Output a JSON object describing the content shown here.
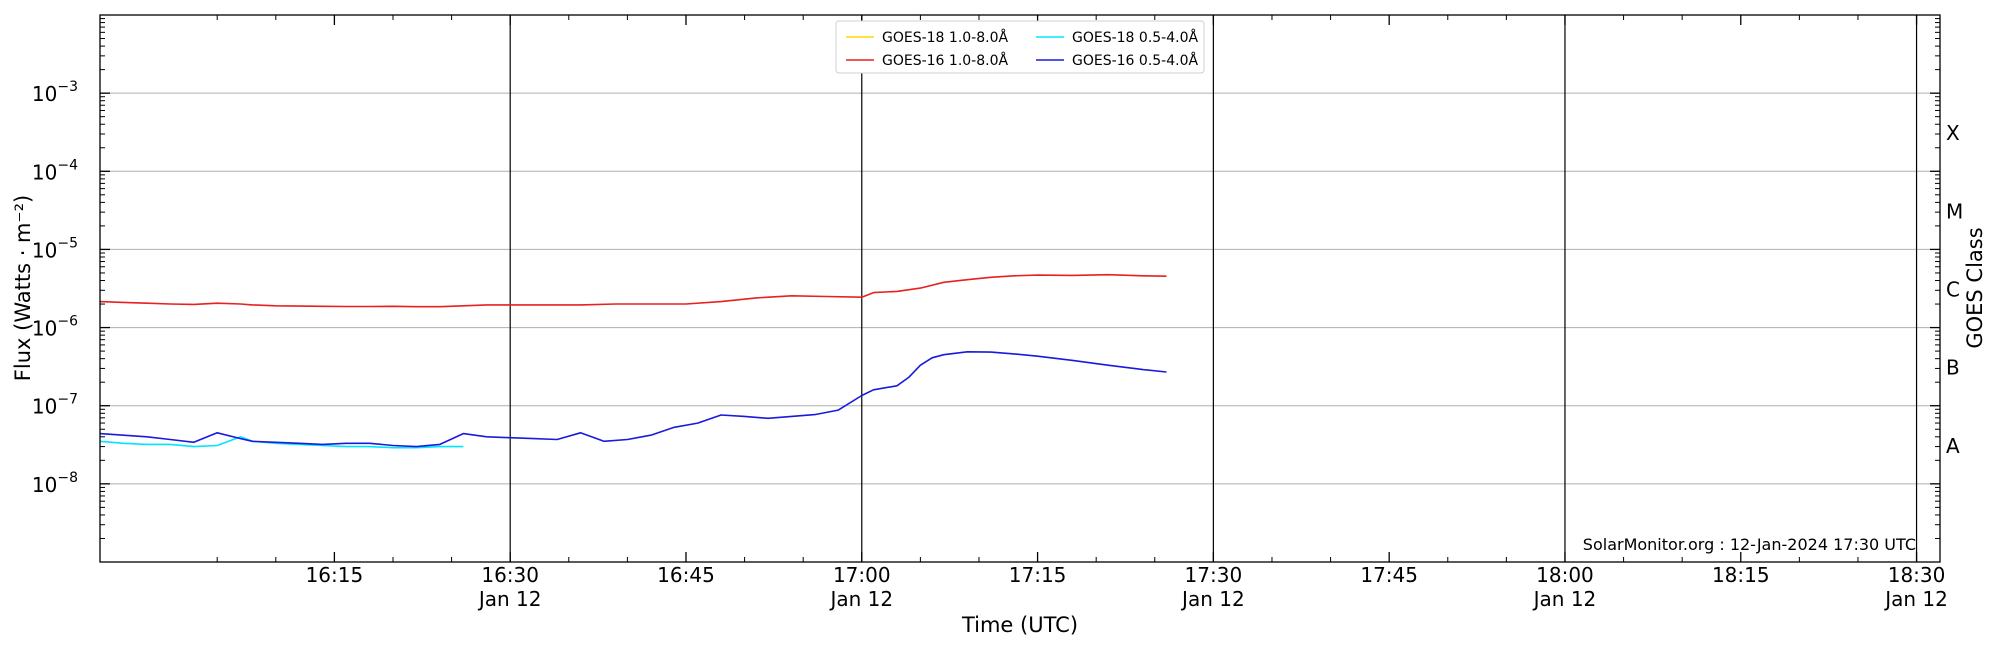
{
  "chart_data": {
    "type": "line",
    "title": "",
    "xlabel": "Time (UTC)",
    "ylabel": "Flux (Watts · m⁻²)",
    "ylabel_right": "GOES Class",
    "yscale": "log",
    "xlim": [
      "15:55",
      "18:32"
    ],
    "ylim": [
      1e-09,
      0.01
    ],
    "grid": "horizontal at decades",
    "legend_placement": "top-center",
    "credit": "SolarMonitor.org : 12-Jan-2024 17:30 UTC",
    "y_ticks": [
      {
        "value": 1e-08,
        "base": "10",
        "exp": "−8"
      },
      {
        "value": 1e-07,
        "base": "10",
        "exp": "−7"
      },
      {
        "value": 1e-06,
        "base": "10",
        "exp": "−6"
      },
      {
        "value": 1e-05,
        "base": "10",
        "exp": "−5"
      },
      {
        "value": 0.0001,
        "base": "10",
        "exp": "−4"
      },
      {
        "value": 0.001,
        "base": "10",
        "exp": "−3"
      }
    ],
    "goes_classes": [
      {
        "label": "A",
        "flux": 3.16e-08
      },
      {
        "label": "B",
        "flux": 3.16e-07
      },
      {
        "label": "C",
        "flux": 3.16e-06
      },
      {
        "label": "M",
        "flux": 3.16e-05
      },
      {
        "label": "X",
        "flux": 0.000316
      }
    ],
    "x_ticks": [
      {
        "time": "16:15",
        "date": ""
      },
      {
        "time": "16:30",
        "date": "Jan 12"
      },
      {
        "time": "16:45",
        "date": ""
      },
      {
        "time": "17:00",
        "date": "Jan 12"
      },
      {
        "time": "17:15",
        "date": ""
      },
      {
        "time": "17:30",
        "date": "Jan 12"
      },
      {
        "time": "17:45",
        "date": ""
      },
      {
        "time": "18:00",
        "date": "Jan 12"
      },
      {
        "time": "18:15",
        "date": ""
      },
      {
        "time": "18:30",
        "date": "Jan 12"
      }
    ],
    "vertical_lines": [
      "16:30",
      "17:00",
      "17:30",
      "18:00",
      "18:30"
    ],
    "series": [
      {
        "name": "GOES-18 1.0-8.0Å",
        "color": "#ffd700",
        "x": [],
        "y": []
      },
      {
        "name": "GOES-18 0.5-4.0Å",
        "color": "#00e5ff",
        "x": [
          "15:55",
          "15:57",
          "15:59",
          "16:01",
          "16:03",
          "16:05",
          "16:07",
          "16:08",
          "16:10",
          "16:12",
          "16:14",
          "16:16",
          "16:18",
          "16:20",
          "16:22",
          "16:24",
          "16:26"
        ],
        "y": [
          3.5e-08,
          3.3e-08,
          3.2e-08,
          3.2e-08,
          3e-08,
          3.1e-08,
          4e-08,
          3.5e-08,
          3.3e-08,
          3.2e-08,
          3.1e-08,
          3e-08,
          3e-08,
          2.9e-08,
          2.9e-08,
          3e-08,
          3e-08
        ]
      },
      {
        "name": "GOES-16 1.0-8.0Å",
        "color": "#e8201f",
        "x": [
          "15:55",
          "15:57",
          "15:59",
          "16:01",
          "16:03",
          "16:05",
          "16:07",
          "16:08",
          "16:10",
          "16:12",
          "16:14",
          "16:16",
          "16:18",
          "16:20",
          "16:22",
          "16:24",
          "16:26",
          "16:28",
          "16:30",
          "16:33",
          "16:36",
          "16:39",
          "16:42",
          "16:45",
          "16:48",
          "16:51",
          "16:54",
          "16:57",
          "17:00",
          "17:01",
          "17:03",
          "17:05",
          "17:07",
          "17:09",
          "17:11",
          "17:13",
          "17:15",
          "17:18",
          "17:21",
          "17:24",
          "17:26"
        ],
        "y": [
          2.15e-06,
          2.1e-06,
          2.05e-06,
          2e-06,
          1.98e-06,
          2.05e-06,
          2e-06,
          1.95e-06,
          1.9e-06,
          1.88e-06,
          1.87e-06,
          1.86e-06,
          1.86e-06,
          1.87e-06,
          1.85e-06,
          1.85e-06,
          1.9e-06,
          1.95e-06,
          1.95e-06,
          1.95e-06,
          1.95e-06,
          2e-06,
          2e-06,
          2e-06,
          2.15e-06,
          2.4e-06,
          2.55e-06,
          2.5e-06,
          2.45e-06,
          2.8e-06,
          2.9e-06,
          3.2e-06,
          3.8e-06,
          4.1e-06,
          4.4e-06,
          4.6e-06,
          4.7e-06,
          4.65e-06,
          4.75e-06,
          4.6e-06,
          4.55e-06
        ]
      },
      {
        "name": "GOES-16 0.5-4.0Å",
        "color": "#1a1adc",
        "x": [
          "15:55",
          "15:57",
          "15:59",
          "16:01",
          "16:03",
          "16:05",
          "16:07",
          "16:08",
          "16:10",
          "16:12",
          "16:14",
          "16:16",
          "16:18",
          "16:20",
          "16:22",
          "16:24",
          "16:26",
          "16:28",
          "16:30",
          "16:32",
          "16:34",
          "16:36",
          "16:38",
          "16:40",
          "16:42",
          "16:44",
          "16:46",
          "16:48",
          "16:50",
          "16:52",
          "16:54",
          "16:56",
          "16:58",
          "17:00",
          "17:01",
          "17:03",
          "17:04",
          "17:05",
          "17:06",
          "17:07",
          "17:09",
          "17:11",
          "17:13",
          "17:15",
          "17:18",
          "17:21",
          "17:24",
          "17:26"
        ],
        "y": [
          4.4e-08,
          4.2e-08,
          4e-08,
          3.7e-08,
          3.4e-08,
          4.5e-08,
          3.8e-08,
          3.5e-08,
          3.4e-08,
          3.3e-08,
          3.2e-08,
          3.3e-08,
          3.3e-08,
          3.1e-08,
          3e-08,
          3.2e-08,
          4.4e-08,
          4e-08,
          3.9e-08,
          3.8e-08,
          3.7e-08,
          4.5e-08,
          3.5e-08,
          3.7e-08,
          4.2e-08,
          5.3e-08,
          6e-08,
          7.6e-08,
          7.3e-08,
          6.9e-08,
          7.3e-08,
          7.7e-08,
          8.8e-08,
          1.35e-07,
          1.6e-07,
          1.8e-07,
          2.3e-07,
          3.3e-07,
          4.1e-07,
          4.5e-07,
          4.9e-07,
          4.85e-07,
          4.6e-07,
          4.3e-07,
          3.8e-07,
          3.3e-07,
          2.9e-07,
          2.7e-07
        ]
      }
    ]
  }
}
